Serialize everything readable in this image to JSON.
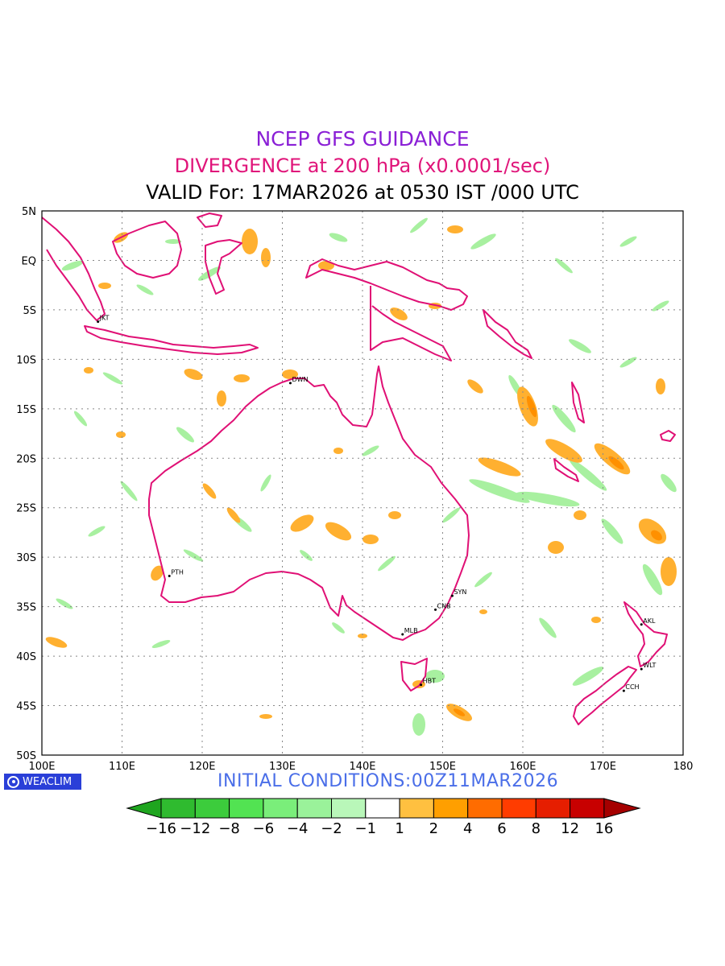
{
  "header": {
    "title": "NCEP GFS GUIDANCE",
    "subtitle": "DIVERGENCE at 200 hPa (x0.0001/sec)",
    "valid": "VALID For: 17MAR2026 at 0530 IST /000 UTC"
  },
  "footer": {
    "brand": "WEACLIM",
    "initial_conditions": "INITIAL CONDITIONS:00Z11MAR2026"
  },
  "map": {
    "lon_labels": [
      "100E",
      "110E",
      "120E",
      "130E",
      "140E",
      "150E",
      "160E",
      "170E",
      "180"
    ],
    "lat_labels": [
      "5N",
      "EQ",
      "5S",
      "10S",
      "15S",
      "20S",
      "25S",
      "30S",
      "35S",
      "40S",
      "45S",
      "50S"
    ],
    "cities": [
      {
        "code": "JKT",
        "lon": 107.0,
        "lat": -6.2
      },
      {
        "code": "DWN",
        "lon": 131.0,
        "lat": -12.4
      },
      {
        "code": "PTH",
        "lon": 115.9,
        "lat": -31.9
      },
      {
        "code": "SYN",
        "lon": 151.2,
        "lat": -33.9
      },
      {
        "code": "CNB",
        "lon": 149.1,
        "lat": -35.3
      },
      {
        "code": "MLB",
        "lon": 145.0,
        "lat": -37.8
      },
      {
        "code": "HBT",
        "lon": 147.3,
        "lat": -42.9
      },
      {
        "code": "AKL",
        "lon": 174.8,
        "lat": -36.8
      },
      {
        "code": "WLT",
        "lon": 174.8,
        "lat": -41.3
      },
      {
        "code": "CCH",
        "lon": 172.6,
        "lat": -43.5
      }
    ]
  },
  "legend": {
    "labels": [
      "−16",
      "−12",
      "−8",
      "−6",
      "−4",
      "−2",
      "−1",
      "1",
      "2",
      "4",
      "6",
      "8",
      "12",
      "16"
    ],
    "colors": [
      "#1fa51f",
      "#2fbb2f",
      "#3ccc3c",
      "#52e352",
      "#7aee7a",
      "#9af29a",
      "#b9f7b9",
      "#ffffff",
      "#ffc040",
      "#ff9f00",
      "#ff6c00",
      "#ff3c00",
      "#e61e00",
      "#c80000",
      "#a50000"
    ]
  }
}
